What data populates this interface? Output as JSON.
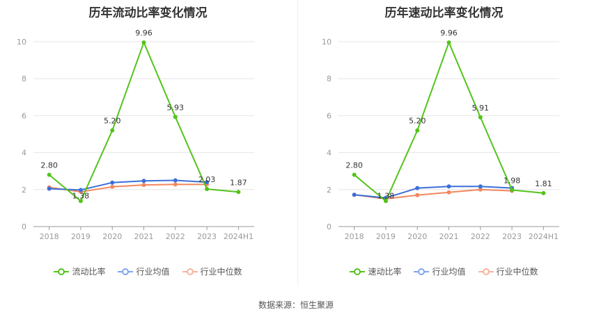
{
  "colors": {
    "current": "#52c41a",
    "avg": "#3b6fd9",
    "median": "#f4865e",
    "avg_legend": "#7ea6ee",
    "median_legend": "#f7b39a"
  },
  "chart_data": [
    {
      "type": "line",
      "title": "历年流动比率变化情况",
      "categories": [
        "2018",
        "2019",
        "2020",
        "2021",
        "2022",
        "2023",
        "2024H1"
      ],
      "ylim": [
        0,
        10
      ],
      "yticks": [
        "0",
        "2",
        "4",
        "6",
        "8",
        "10"
      ],
      "series": [
        {
          "name": "流动比率",
          "key": "current",
          "values": [
            2.8,
            1.38,
            5.2,
            9.96,
            5.93,
            2.03,
            1.87
          ],
          "labels": [
            "2.80",
            "1.38",
            "5.20",
            "9.96",
            "5.93",
            "2.03",
            "1.87"
          ]
        },
        {
          "name": "行业均值",
          "key": "avg",
          "values": [
            2.05,
            1.98,
            2.38,
            2.47,
            2.5,
            2.4,
            null
          ]
        },
        {
          "name": "行业中位数",
          "key": "median",
          "values": [
            2.12,
            1.88,
            2.15,
            2.25,
            2.28,
            2.28,
            null
          ]
        }
      ]
    },
    {
      "type": "line",
      "title": "历年速动比率变化情况",
      "categories": [
        "2018",
        "2019",
        "2020",
        "2021",
        "2022",
        "2023",
        "2024H1"
      ],
      "ylim": [
        0,
        10
      ],
      "yticks": [
        "0",
        "2",
        "4",
        "6",
        "8",
        "10"
      ],
      "series": [
        {
          "name": "速动比率",
          "key": "current",
          "values": [
            2.8,
            1.38,
            5.2,
            9.96,
            5.91,
            1.98,
            1.81
          ],
          "labels": [
            "2.80",
            "1.38",
            "5.20",
            "9.96",
            "5.91",
            "1.98",
            "1.81"
          ]
        },
        {
          "name": "行业均值",
          "key": "avg",
          "values": [
            1.72,
            1.55,
            2.08,
            2.17,
            2.17,
            2.08,
            null
          ]
        },
        {
          "name": "行业中位数",
          "key": "median",
          "values": [
            1.72,
            1.5,
            1.7,
            1.85,
            2.0,
            1.93,
            null
          ]
        }
      ]
    }
  ],
  "source": "数据来源：恒生聚源"
}
